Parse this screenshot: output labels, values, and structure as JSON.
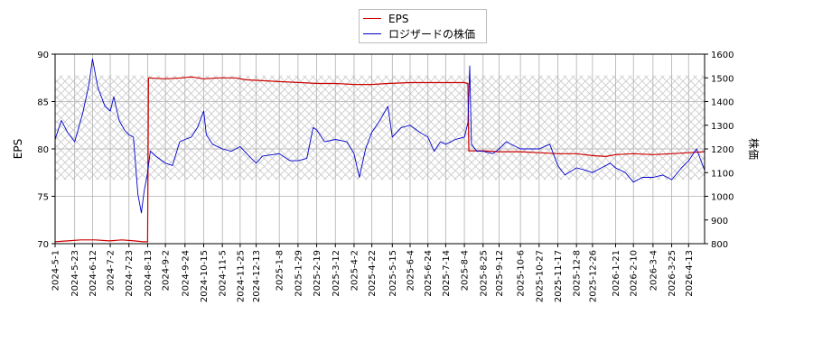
{
  "chart_data": {
    "type": "line",
    "title": "",
    "xlabel": "",
    "ylabel": "EPS",
    "y2label": "株価",
    "ylim": [
      70,
      90
    ],
    "y2lim": [
      800,
      1600
    ],
    "yticks": [
      70,
      75,
      80,
      85,
      90
    ],
    "y2ticks": [
      800,
      900,
      1000,
      1100,
      1200,
      1300,
      1400,
      1500,
      1600
    ],
    "xlim": [
      "2024-05-01",
      "2026-05-01"
    ],
    "x_tick_labels": [
      "2024-5-1",
      "2024-5-23",
      "2024-6-12",
      "2024-7-2",
      "2024-7-23",
      "2024-8-13",
      "2024-9-2",
      "2024-9-24",
      "2024-10-15",
      "2024-11-5",
      "2024-11-25",
      "2024-12-13",
      "2025-1-8",
      "2025-1-29",
      "2025-2-19",
      "2025-3-12",
      "2025-4-2",
      "2025-4-22",
      "2025-5-15",
      "2025-6-4",
      "2025-6-24",
      "2025-7-14",
      "2025-8-4",
      "2025-8-25",
      "2025-9-12",
      "2025-10-6",
      "2025-10-27",
      "2025-11-17",
      "2025-12-8",
      "2025-12-26",
      "2026-1-21",
      "2026-2-10",
      "2026-3-4",
      "2026-3-25",
      "2026-4-13"
    ],
    "x_tick_dates": [
      "2024-05-01",
      "2024-05-23",
      "2024-06-12",
      "2024-07-02",
      "2024-07-23",
      "2024-08-13",
      "2024-09-02",
      "2024-09-24",
      "2024-10-15",
      "2024-11-05",
      "2024-11-25",
      "2024-12-13",
      "2025-01-08",
      "2025-01-29",
      "2025-02-19",
      "2025-03-12",
      "2025-04-02",
      "2025-04-22",
      "2025-05-15",
      "2025-06-04",
      "2025-06-24",
      "2025-07-14",
      "2025-08-04",
      "2025-08-25",
      "2025-09-12",
      "2025-10-06",
      "2025-10-27",
      "2025-11-17",
      "2025-12-08",
      "2025-12-26",
      "2026-01-21",
      "2026-02-10",
      "2026-03-04",
      "2026-03-25",
      "2026-04-13"
    ],
    "grid": true,
    "legend_position": "top-center",
    "shaded_band": {
      "y2_from": 1070,
      "y2_to": 1510,
      "pattern": "crosshatch"
    },
    "series": [
      {
        "name": "EPS",
        "axis": "left",
        "color": "#cc0000",
        "points": [
          [
            "2024-05-01",
            70.2
          ],
          [
            "2024-05-15",
            70.3
          ],
          [
            "2024-05-30",
            70.4
          ],
          [
            "2024-06-15",
            70.4
          ],
          [
            "2024-07-01",
            70.3
          ],
          [
            "2024-07-15",
            70.4
          ],
          [
            "2024-07-29",
            70.3
          ],
          [
            "2024-08-08",
            70.2
          ],
          [
            "2024-08-13",
            70.2
          ],
          [
            "2024-08-14",
            87.5
          ],
          [
            "2024-09-02",
            87.4
          ],
          [
            "2024-09-20",
            87.5
          ],
          [
            "2024-10-01",
            87.6
          ],
          [
            "2024-10-15",
            87.4
          ],
          [
            "2024-11-01",
            87.5
          ],
          [
            "2024-11-20",
            87.5
          ],
          [
            "2024-12-01",
            87.3
          ],
          [
            "2024-12-20",
            87.2
          ],
          [
            "2025-01-10",
            87.1
          ],
          [
            "2025-02-01",
            87.0
          ],
          [
            "2025-02-20",
            86.9
          ],
          [
            "2025-03-12",
            86.9
          ],
          [
            "2025-04-02",
            86.8
          ],
          [
            "2025-04-22",
            86.8
          ],
          [
            "2025-05-10",
            86.9
          ],
          [
            "2025-06-04",
            87.0
          ],
          [
            "2025-06-24",
            87.0
          ],
          [
            "2025-07-14",
            87.0
          ],
          [
            "2025-08-04",
            87.0
          ],
          [
            "2025-08-08",
            86.9
          ],
          [
            "2025-08-09",
            79.8
          ],
          [
            "2025-08-25",
            79.8
          ],
          [
            "2025-09-12",
            79.7
          ],
          [
            "2025-10-06",
            79.7
          ],
          [
            "2025-10-27",
            79.6
          ],
          [
            "2025-11-17",
            79.5
          ],
          [
            "2025-12-08",
            79.5
          ],
          [
            "2025-12-26",
            79.3
          ],
          [
            "2026-01-10",
            79.2
          ],
          [
            "2026-01-21",
            79.4
          ],
          [
            "2026-02-10",
            79.5
          ],
          [
            "2026-03-04",
            79.4
          ],
          [
            "2026-03-25",
            79.5
          ],
          [
            "2026-04-13",
            79.6
          ],
          [
            "2026-05-01",
            79.7
          ]
        ]
      },
      {
        "name": "ロジザードの株価",
        "axis": "right",
        "color": "#0000cc",
        "points": [
          [
            "2024-05-01",
            1240
          ],
          [
            "2024-05-08",
            1320
          ],
          [
            "2024-05-15",
            1270
          ],
          [
            "2024-05-23",
            1230
          ],
          [
            "2024-06-01",
            1350
          ],
          [
            "2024-06-08",
            1470
          ],
          [
            "2024-06-12",
            1580
          ],
          [
            "2024-06-18",
            1460
          ],
          [
            "2024-06-26",
            1380
          ],
          [
            "2024-07-02",
            1360
          ],
          [
            "2024-07-06",
            1420
          ],
          [
            "2024-07-12",
            1320
          ],
          [
            "2024-07-18",
            1280
          ],
          [
            "2024-07-23",
            1260
          ],
          [
            "2024-07-28",
            1250
          ],
          [
            "2024-08-02",
            1010
          ],
          [
            "2024-08-06",
            930
          ],
          [
            "2024-08-09",
            1020
          ],
          [
            "2024-08-13",
            1100
          ],
          [
            "2024-08-16",
            1190
          ],
          [
            "2024-08-22",
            1170
          ],
          [
            "2024-09-02",
            1140
          ],
          [
            "2024-09-10",
            1130
          ],
          [
            "2024-09-18",
            1230
          ],
          [
            "2024-09-24",
            1240
          ],
          [
            "2024-10-01",
            1250
          ],
          [
            "2024-10-08",
            1290
          ],
          [
            "2024-10-15",
            1360
          ],
          [
            "2024-10-18",
            1260
          ],
          [
            "2024-10-25",
            1220
          ],
          [
            "2024-11-05",
            1200
          ],
          [
            "2024-11-15",
            1190
          ],
          [
            "2024-11-25",
            1210
          ],
          [
            "2024-12-05",
            1170
          ],
          [
            "2024-12-13",
            1140
          ],
          [
            "2024-12-20",
            1170
          ],
          [
            "2025-01-08",
            1180
          ],
          [
            "2025-01-20",
            1150
          ],
          [
            "2025-01-29",
            1150
          ],
          [
            "2025-02-08",
            1160
          ],
          [
            "2025-02-15",
            1290
          ],
          [
            "2025-02-19",
            1280
          ],
          [
            "2025-02-28",
            1230
          ],
          [
            "2025-03-12",
            1240
          ],
          [
            "2025-03-25",
            1230
          ],
          [
            "2025-04-02",
            1180
          ],
          [
            "2025-04-08",
            1080
          ],
          [
            "2025-04-15",
            1200
          ],
          [
            "2025-04-22",
            1270
          ],
          [
            "2025-05-01",
            1320
          ],
          [
            "2025-05-10",
            1380
          ],
          [
            "2025-05-15",
            1250
          ],
          [
            "2025-05-25",
            1290
          ],
          [
            "2025-06-04",
            1300
          ],
          [
            "2025-06-15",
            1270
          ],
          [
            "2025-06-24",
            1250
          ],
          [
            "2025-07-01",
            1190
          ],
          [
            "2025-07-08",
            1230
          ],
          [
            "2025-07-14",
            1220
          ],
          [
            "2025-07-25",
            1240
          ],
          [
            "2025-08-04",
            1250
          ],
          [
            "2025-08-08",
            1310
          ],
          [
            "2025-08-10",
            1550
          ],
          [
            "2025-08-12",
            1220
          ],
          [
            "2025-08-18",
            1190
          ],
          [
            "2025-08-25",
            1190
          ],
          [
            "2025-09-05",
            1180
          ],
          [
            "2025-09-12",
            1200
          ],
          [
            "2025-09-20",
            1230
          ],
          [
            "2025-10-06",
            1200
          ],
          [
            "2025-10-27",
            1200
          ],
          [
            "2025-11-08",
            1220
          ],
          [
            "2025-11-17",
            1130
          ],
          [
            "2025-11-25",
            1090
          ],
          [
            "2025-12-08",
            1120
          ],
          [
            "2025-12-18",
            1110
          ],
          [
            "2025-12-26",
            1100
          ],
          [
            "2026-01-05",
            1120
          ],
          [
            "2026-01-15",
            1140
          ],
          [
            "2026-01-21",
            1120
          ],
          [
            "2026-02-01",
            1100
          ],
          [
            "2026-02-10",
            1060
          ],
          [
            "2026-02-20",
            1080
          ],
          [
            "2026-03-04",
            1080
          ],
          [
            "2026-03-15",
            1090
          ],
          [
            "2026-03-25",
            1070
          ],
          [
            "2026-04-05",
            1120
          ],
          [
            "2026-04-13",
            1150
          ],
          [
            "2026-04-22",
            1200
          ],
          [
            "2026-05-01",
            1110
          ]
        ]
      }
    ]
  }
}
